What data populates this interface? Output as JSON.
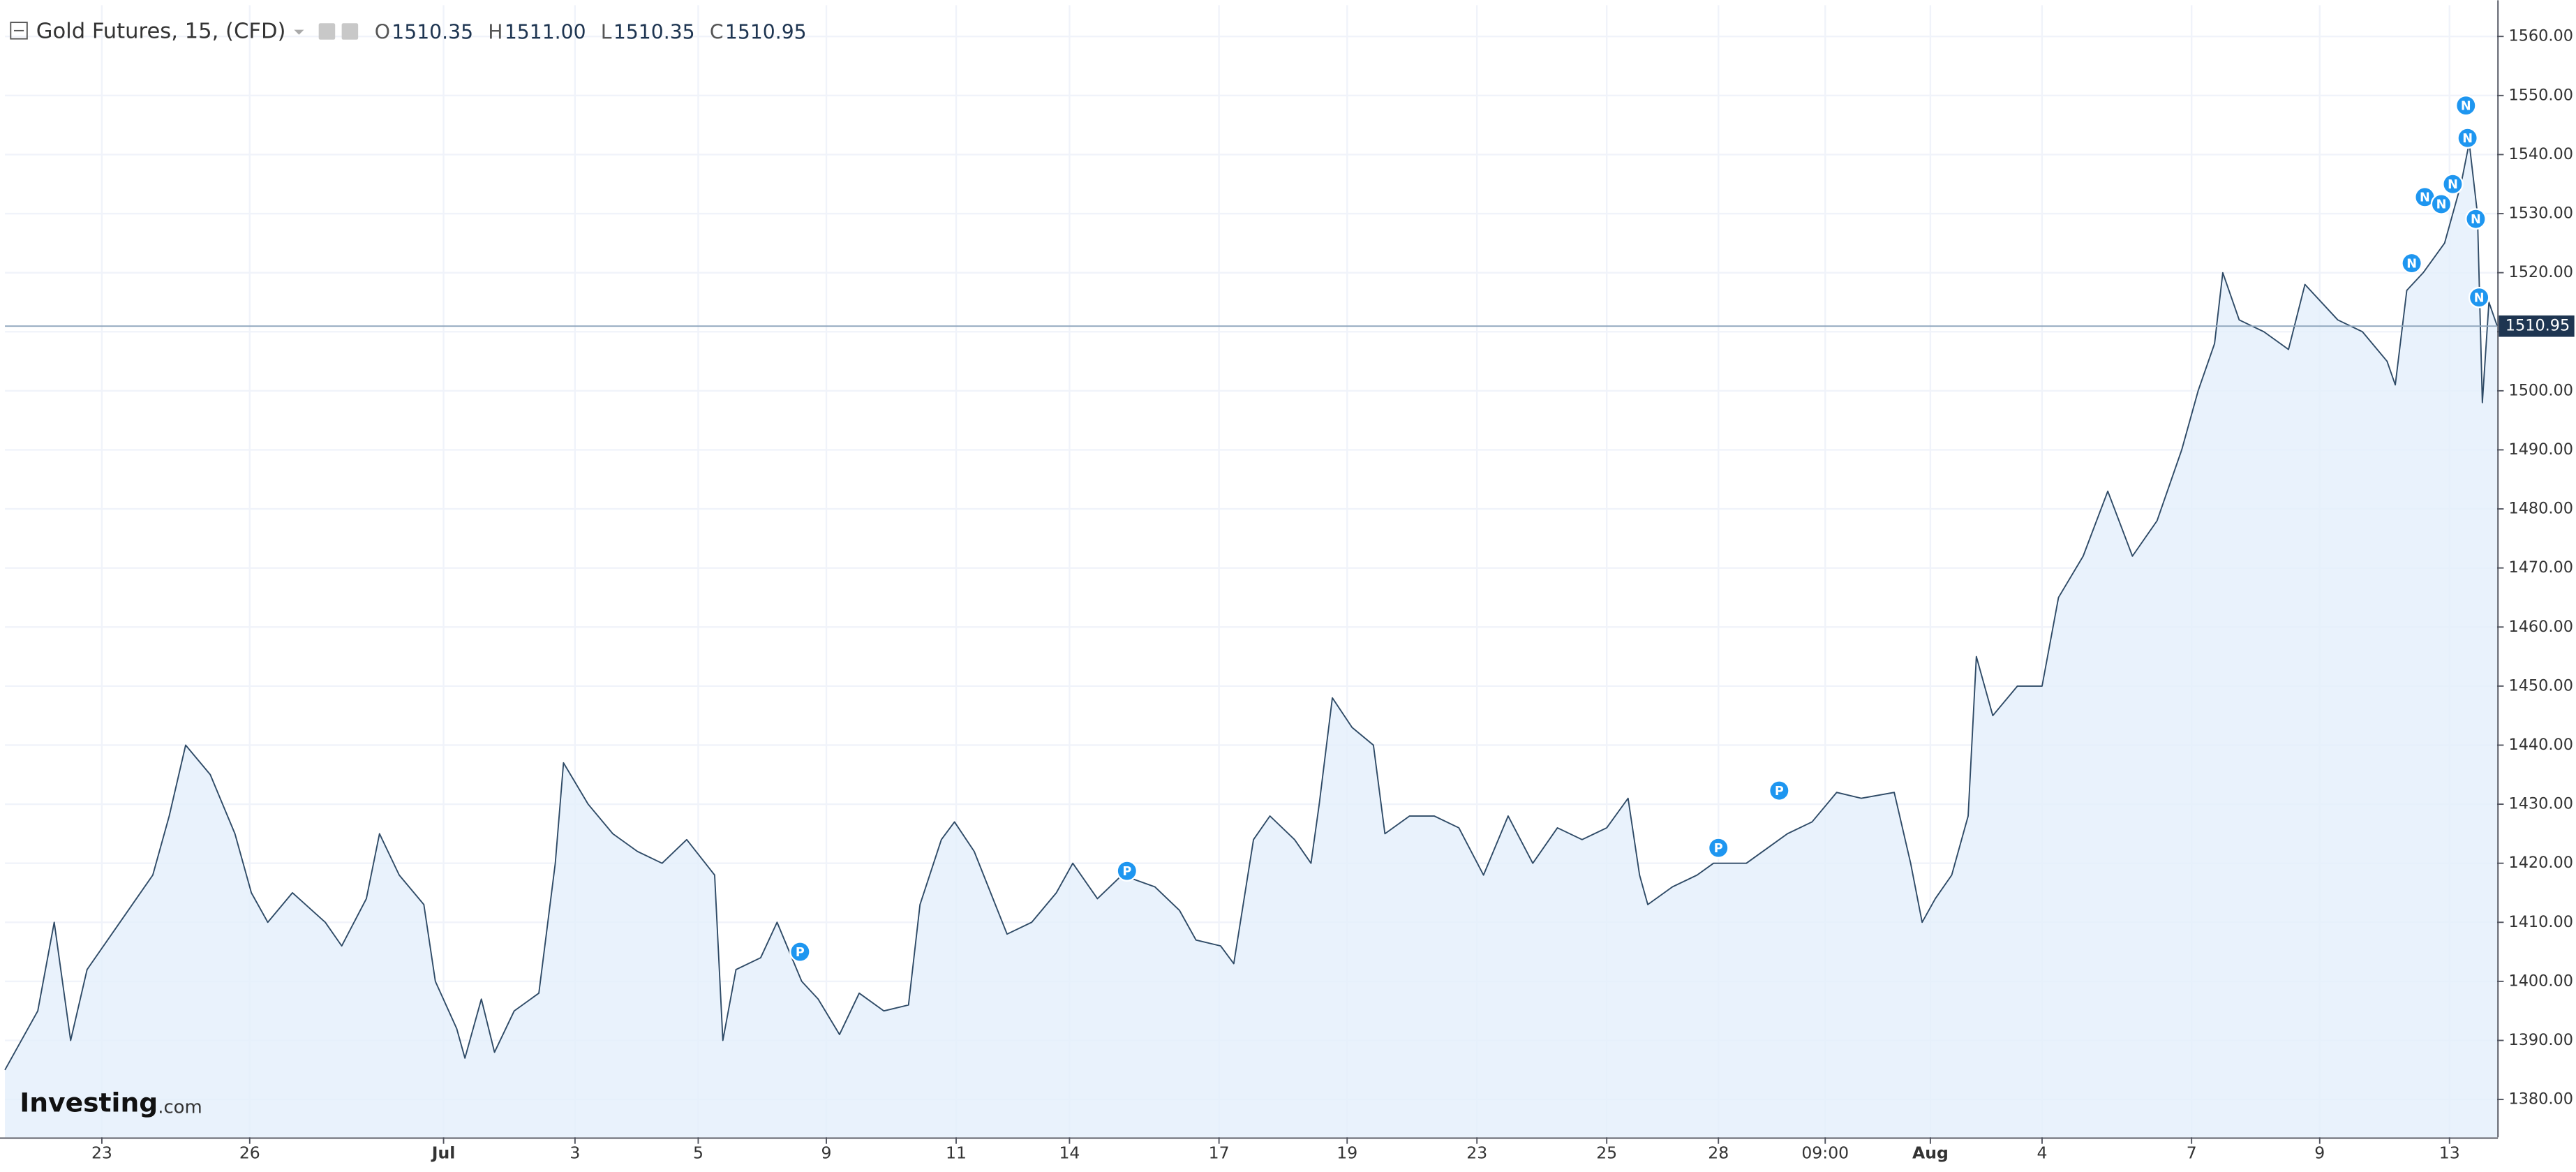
{
  "chart_data": {
    "type": "area",
    "title": "Gold Futures, 15, (CFD)",
    "ohlc_keys": [
      "O",
      "H",
      "L",
      "C"
    ],
    "ohlc_values": [
      1510.35,
      1511,
      1510.35,
      1510.95
    ],
    "ohlc_value_labels": [
      "1510.35",
      "1511.00",
      "1510.35",
      "1510.95"
    ],
    "watermark": [
      "Investing",
      ".com"
    ],
    "color": "#2e4a66",
    "fill": "#e3effb",
    "grid": true,
    "x": [
      0,
      20,
      30,
      40,
      50,
      70,
      90,
      100,
      110,
      125,
      140,
      150,
      160,
      175,
      195,
      205,
      220,
      228,
      240,
      255,
      262,
      275,
      280,
      290,
      298,
      310,
      325,
      335,
      340,
      355,
      370,
      385,
      400,
      415,
      432,
      437,
      445,
      460,
      470,
      485,
      495,
      508,
      520,
      535,
      550,
      557,
      570,
      578,
      590,
      600,
      610,
      625,
      640,
      650,
      665,
      680,
      700,
      715,
      725,
      740,
      748,
      760,
      770,
      785,
      795,
      800,
      808,
      820,
      833,
      840,
      855,
      870,
      885,
      900,
      915,
      930,
      945,
      960,
      975,
      988,
      995,
      1000,
      1015,
      1030,
      1040,
      1060,
      1075,
      1085,
      1100,
      1115,
      1130,
      1150,
      1160,
      1167,
      1175,
      1185,
      1195,
      1200,
      1210,
      1225,
      1240,
      1250,
      1265,
      1280,
      1295,
      1310,
      1325,
      1335,
      1345,
      1350,
      1360,
      1375,
      1390,
      1400,
      1420,
      1435,
      1450,
      1455,
      1462,
      1472,
      1485,
      1495,
      1500,
      1505,
      1508,
      1512,
      1517
    ],
    "values": [
      1385,
      1395,
      1410,
      1390,
      1402,
      1410,
      1418,
      1428,
      1440,
      1435,
      1425,
      1415,
      1410,
      1415,
      1410,
      1406,
      1414,
      1425,
      1418,
      1413,
      1400,
      1392,
      1387,
      1397,
      1388,
      1395,
      1398,
      1420,
      1437,
      1430,
      1425,
      1422,
      1420,
      1424,
      1418,
      1390,
      1402,
      1404,
      1410,
      1400,
      1397,
      1391,
      1398,
      1395,
      1396,
      1413,
      1424,
      1427,
      1422,
      1415,
      1408,
      1410,
      1415,
      1420,
      1414,
      1418,
      1416,
      1412,
      1407,
      1406,
      1403,
      1424,
      1428,
      1424,
      1420,
      1430,
      1448,
      1443,
      1440,
      1425,
      1428,
      1428,
      1426,
      1418,
      1428,
      1420,
      1426,
      1424,
      1426,
      1431,
      1418,
      1413,
      1416,
      1418,
      1420,
      1420,
      1423,
      1425,
      1427,
      1432,
      1431,
      1432,
      1420,
      1410,
      1414,
      1418,
      1428,
      1455,
      1445,
      1450,
      1450,
      1465,
      1472,
      1483,
      1472,
      1478,
      1490,
      1500,
      1508,
      1520,
      1512,
      1510,
      1507,
      1518,
      1512,
      1510,
      1505,
      1501,
      1517,
      1520,
      1525,
      1535,
      1542,
      1530,
      1498,
      1515,
      1511
    ],
    "xlim": [
      0,
      1517
    ],
    "ylim": [
      1373.6,
      1565.3
    ],
    "yticks": [
      {
        "value": 1380,
        "label": "1380.00"
      },
      {
        "value": 1390,
        "label": "1390.00"
      },
      {
        "value": 1400,
        "label": "1400.00"
      },
      {
        "value": 1410,
        "label": "1410.00"
      },
      {
        "value": 1420,
        "label": "1420.00"
      },
      {
        "value": 1430,
        "label": "1430.00"
      },
      {
        "value": 1440,
        "label": "1440.00"
      },
      {
        "value": 1450,
        "label": "1450.00"
      },
      {
        "value": 1460,
        "label": "1460.00"
      },
      {
        "value": 1470,
        "label": "1470.00"
      },
      {
        "value": 1480,
        "label": "1480.00"
      },
      {
        "value": 1490,
        "label": "1490.00"
      },
      {
        "value": 1500,
        "label": "1500.00"
      },
      {
        "value": 1510,
        "label": "1510.00"
      },
      {
        "value": 1520,
        "label": "1520.00"
      },
      {
        "value": 1530,
        "label": "1530.00"
      },
      {
        "value": 1540,
        "label": "1540.00"
      },
      {
        "value": 1550,
        "label": "1550.00"
      },
      {
        "value": 1560,
        "label": "1560.00"
      }
    ],
    "xticks": [
      {
        "value": 59,
        "label": "23"
      },
      {
        "value": 149,
        "label": "26"
      },
      {
        "value": 267,
        "label": "Jul"
      },
      {
        "value": 347,
        "label": "3"
      },
      {
        "value": 422,
        "label": "5"
      },
      {
        "value": 500,
        "label": "9"
      },
      {
        "value": 579,
        "label": "11"
      },
      {
        "value": 648,
        "label": "14"
      },
      {
        "value": 739,
        "label": "17"
      },
      {
        "value": 817,
        "label": "19"
      },
      {
        "value": 896,
        "label": "23"
      },
      {
        "value": 975,
        "label": "25"
      },
      {
        "value": 1043,
        "label": "28"
      },
      {
        "value": 1108,
        "label": "09:00"
      },
      {
        "value": 1172,
        "label": "Aug"
      },
      {
        "value": 1240,
        "label": "4"
      },
      {
        "value": 1331,
        "label": "7"
      },
      {
        "value": 1409,
        "label": "9"
      },
      {
        "value": 1488,
        "label": "13"
      }
    ],
    "events": [
      {
        "x": 484,
        "y": 1405,
        "label": "P"
      },
      {
        "x": 683,
        "y": 1418.7,
        "label": "P"
      },
      {
        "x": 1043,
        "y": 1422.6,
        "label": "P"
      },
      {
        "x": 1080,
        "y": 1432.3,
        "label": "P"
      },
      {
        "x": 1465,
        "y": 1521.6,
        "label": "N"
      },
      {
        "x": 1473,
        "y": 1532.8,
        "label": "N"
      },
      {
        "x": 1483,
        "y": 1531.6,
        "label": "N"
      },
      {
        "x": 1490,
        "y": 1535,
        "label": "N"
      },
      {
        "x": 1498,
        "y": 1548.3,
        "label": "N"
      },
      {
        "x": 1499,
        "y": 1542.8,
        "label": "N"
      },
      {
        "x": 1504,
        "y": 1529.1,
        "label": "N"
      },
      {
        "x": 1506,
        "y": 1515.8,
        "label": "N"
      }
    ]
  }
}
